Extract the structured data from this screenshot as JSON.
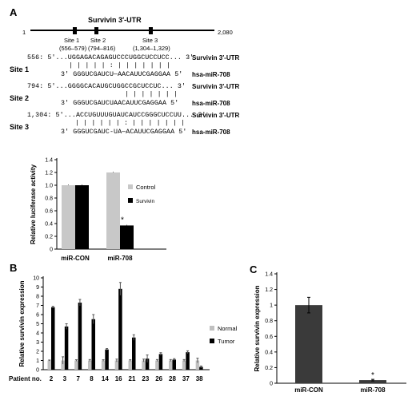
{
  "panel_labels": {
    "a": "A",
    "b": "B",
    "c": "C"
  },
  "utr": {
    "title": "Survivin 3′-UTR",
    "start": "1",
    "end": "2,080",
    "sites": [
      {
        "name": "Site 1",
        "range": "(556–579)"
      },
      {
        "name": "Site 2",
        "range": "(794–816)"
      },
      {
        "name": "Site 3",
        "range": "(1,304–1,329)"
      }
    ]
  },
  "alignments": [
    {
      "label": "Site 1",
      "top": "556: 5′...UGGAGACAGAGUCCCUGGCUCCUCC... 3′",
      "mid": "| |   | | |       :  | | | | | | |",
      "bottom": "3′ GGGUCGAUCU—AACAUUCGAGGAA 5′",
      "top_name": "Survivin 3′-UTR",
      "bottom_name": "hsa-miR-708"
    },
    {
      "label": "Site 2",
      "top": "794: 5′...GGGGCACAUGCUGGCCGCUCCUC... 3′",
      "mid": "| | | | | | |",
      "bottom": "3′ GGGUCGAUCUAACAUUCGAGGAA 5′",
      "top_name": "Survivin 3′-UTR",
      "bottom_name": "hsa-miR-708"
    },
    {
      "label": "Site 3",
      "top": "1,304: 5′...ACCUGUUUGUAUCAUCCGGGCUCCUU... 3′",
      "mid": "|   | |   | |    | :  | | | | | | |",
      "bottom": "3′ GGGUCGAUC-UA—ACAUUCGAGGAA 5′",
      "top_name": "Survivin 3′-UTR",
      "bottom_name": "hsa-miR-708"
    }
  ],
  "colors": {
    "control": "#c8c8c8",
    "survivin": "#000000",
    "normal": "#c0c0c0",
    "tumor": "#000000",
    "bar_c": "#3a3a3a"
  },
  "chart_data": [
    {
      "type": "bar",
      "panel": "A",
      "categories": [
        "miR-CON",
        "miR-708"
      ],
      "series": [
        {
          "name": "Control",
          "values": [
            1.0,
            1.2
          ],
          "errors": [
            0.01,
            0.01
          ]
        },
        {
          "name": "Survivin",
          "values": [
            1.0,
            0.37
          ],
          "errors": [
            0.01,
            0.01
          ]
        }
      ],
      "ylabel": "Relative luciferase activity",
      "ylim": [
        0,
        1.4
      ],
      "yticks": [
        "0",
        "0.2",
        "0.4",
        "0.6",
        "0.8",
        "1.0",
        "1.2",
        "1.4"
      ],
      "annotation": "*",
      "legend": "right"
    },
    {
      "type": "bar",
      "panel": "B",
      "xlabel": "Patient no.",
      "categories": [
        "2",
        "3",
        "7",
        "8",
        "14",
        "16",
        "21",
        "23",
        "26",
        "28",
        "37",
        "38"
      ],
      "series": [
        {
          "name": "Normal",
          "values": [
            1,
            1,
            1,
            1,
            1,
            1,
            1,
            1,
            1,
            1,
            1,
            1
          ],
          "errors": [
            0.05,
            0.4,
            0.08,
            0.1,
            0.08,
            0.15,
            0.08,
            0.15,
            0.1,
            0.1,
            0.1,
            0.25
          ]
        },
        {
          "name": "Tumor",
          "values": [
            6.8,
            4.7,
            7.3,
            5.5,
            2.2,
            8.8,
            3.5,
            1.2,
            1.7,
            1.1,
            1.9,
            0.3
          ],
          "errors": [
            0.1,
            0.3,
            0.35,
            0.5,
            0.1,
            0.7,
            0.3,
            0.4,
            0.15,
            0.1,
            0.15,
            0.1
          ]
        }
      ],
      "ylabel": "Relative survivin expression",
      "ylim": [
        0,
        10
      ],
      "yticks": [
        "0",
        "1",
        "2",
        "3",
        "4",
        "5",
        "6",
        "7",
        "8",
        "9",
        "10"
      ],
      "legend": "right"
    },
    {
      "type": "bar",
      "panel": "C",
      "categories": [
        "miR-CON",
        "miR-708"
      ],
      "values": [
        1.0,
        0.04
      ],
      "errors": [
        0.1,
        0.01
      ],
      "ylabel": "Relative survivin expression",
      "ylim": [
        0,
        1.4
      ],
      "yticks": [
        "0",
        "0.2",
        "0.4",
        "0.6",
        "0.8",
        "1",
        "1.2",
        "1.4"
      ],
      "annotation": "*"
    }
  ]
}
